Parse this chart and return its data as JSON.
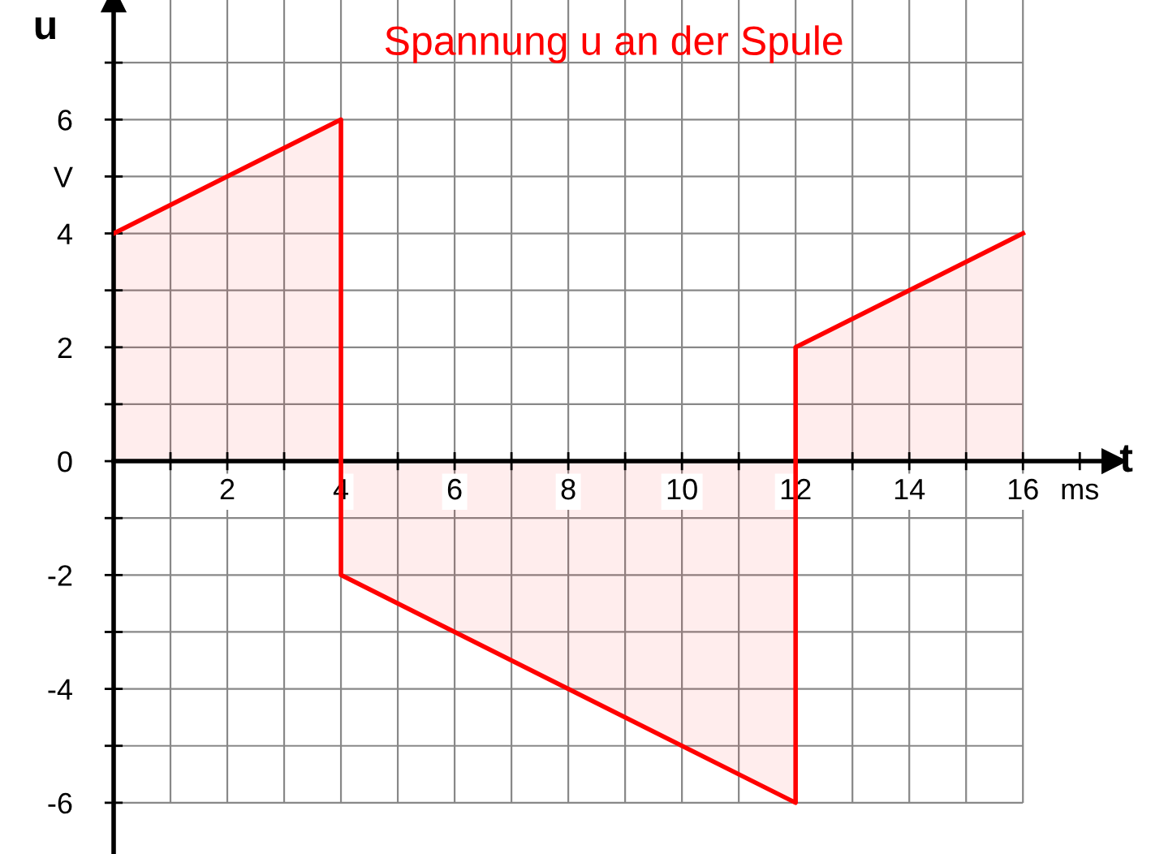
{
  "chart_data": {
    "type": "area",
    "title": "Spannung u an der Spule",
    "xlabel": "t",
    "ylabel": "u",
    "x": [
      0,
      4,
      4,
      12,
      12,
      16
    ],
    "series": [
      {
        "color": "#ff0000",
        "values": [
          4,
          6,
          -2,
          -6,
          2,
          4
        ]
      }
    ],
    "xlim": [
      0,
      17.6
    ],
    "ylim": [
      -6.9,
      8.1
    ],
    "xticks": [
      {
        "value": 1,
        "label": null
      },
      2,
      {
        "value": 3,
        "label": null
      },
      4,
      {
        "value": 5,
        "label": null
      },
      6,
      {
        "value": 7,
        "label": null
      },
      8,
      {
        "value": 9,
        "label": null
      },
      10,
      {
        "value": 11,
        "label": null
      },
      12,
      {
        "value": 13,
        "label": null
      },
      14,
      {
        "value": 15,
        "label": null
      },
      16,
      {
        "value": 17,
        "label": "ms"
      }
    ],
    "yticks": [
      -6,
      {
        "value": -5,
        "label": null
      },
      -4,
      {
        "value": -3,
        "label": null
      },
      -2,
      {
        "value": -1,
        "label": null
      },
      0,
      {
        "value": 1,
        "label": null
      },
      2,
      {
        "value": 3,
        "label": null
      },
      4,
      {
        "value": 5,
        "label": "V"
      },
      6,
      {
        "value": 7,
        "label": null
      }
    ],
    "grid": true
  }
}
